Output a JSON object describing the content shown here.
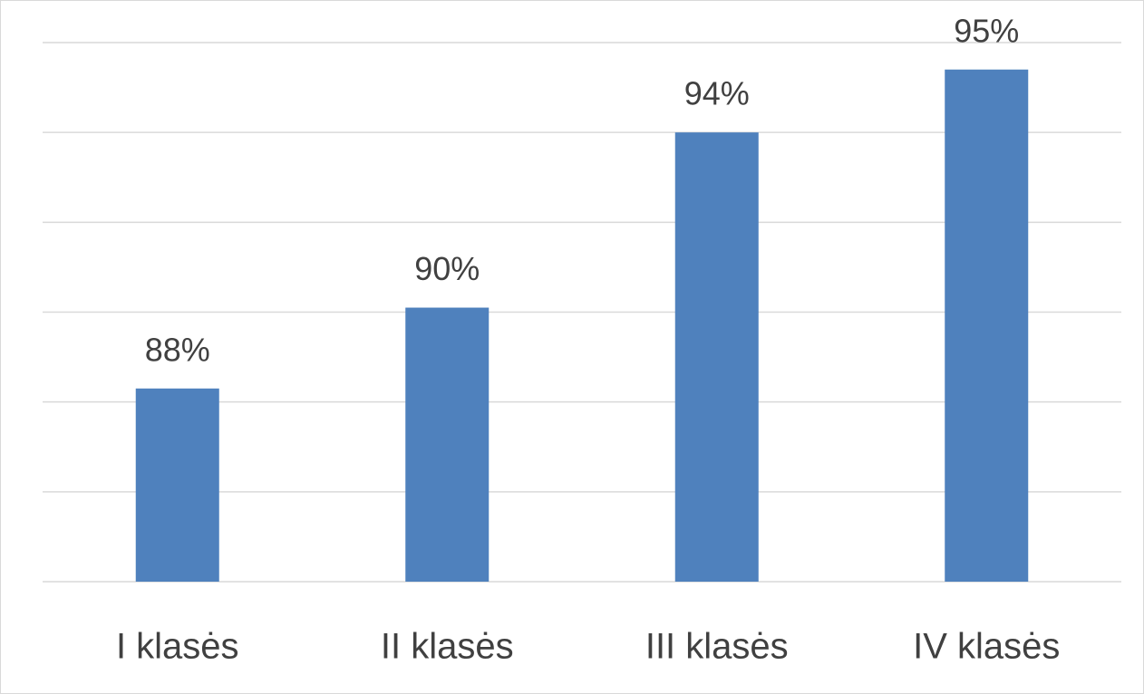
{
  "chart_data": {
    "type": "bar",
    "categories": [
      "I klasės",
      "II klasės",
      "III klasės",
      "IV klasės"
    ],
    "values": [
      88.3,
      90.1,
      94,
      95.4
    ],
    "value_labels": [
      "88%",
      "90%",
      "94%",
      "95%"
    ],
    "color": "#4f81bd",
    "ylim": [
      84,
      96
    ],
    "yticks": [
      84,
      86,
      88,
      90,
      92,
      94,
      96
    ],
    "grid": true
  }
}
